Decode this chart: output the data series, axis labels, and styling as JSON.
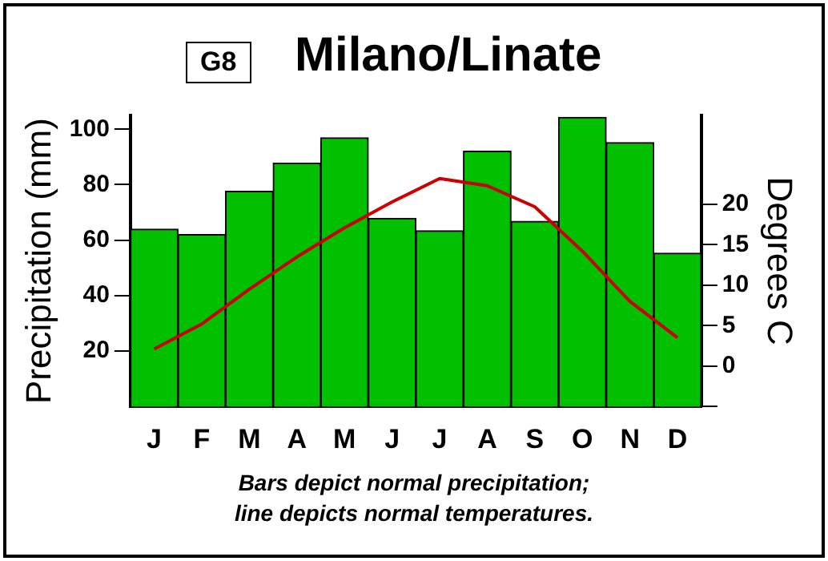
{
  "chart_data": {
    "type": "bar",
    "title": "Milano/Linate",
    "annotations": [
      "G8",
      "Bars depict normal precipitation;\nline depicts normal temperatures."
    ],
    "categories": [
      "J",
      "F",
      "M",
      "A",
      "M",
      "J",
      "J",
      "A",
      "S",
      "O",
      "N",
      "D"
    ],
    "series": [
      {
        "color": "#00c000",
        "values": [
          64,
          62,
          77.6,
          87.8,
          96.9,
          67.9,
          63.4,
          92.1,
          66.8,
          104.3,
          95.2,
          55.3
        ]
      },
      {
        "type": "line",
        "axis": "y2",
        "color": "#cc0000",
        "values": [
          2.1,
          5.2,
          9.5,
          13.5,
          17.1,
          20.3,
          23.2,
          22.3,
          19.7,
          14.2,
          8.0,
          3.5
        ]
      }
    ],
    "ylabel": "Precipitation (mm)",
    "y2label": "Degrees C",
    "ylim": [
      0,
      105
    ],
    "yticks": [
      20,
      40,
      60,
      80,
      100
    ],
    "y2lim": [
      -5,
      31
    ],
    "y2ticks": [
      {
        "value": -5,
        "label": null
      },
      0,
      5,
      10,
      15,
      20
    ],
    "grid": false,
    "legend": false,
    "marker": "none",
    "line_style": "solid"
  }
}
